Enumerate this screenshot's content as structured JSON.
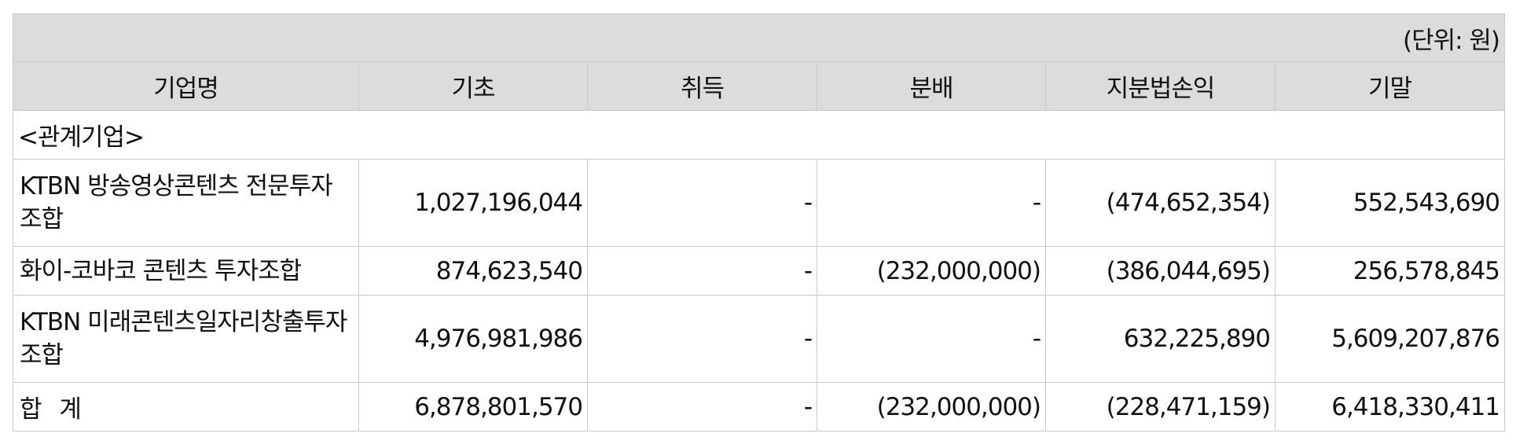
{
  "unit_label": "(단위: 원)",
  "columns": [
    "기업명",
    "기초",
    "취득",
    "분배",
    "지분법손익",
    "기말"
  ],
  "group_label": "<관계기업>",
  "rows": [
    {
      "name": "KTBN 방송영상콘텐츠 전문투자조합",
      "opening": "1,027,196,044",
      "acquisition": "-",
      "distribution": "-",
      "equity_method": "(474,652,354)",
      "closing": "552,543,690"
    },
    {
      "name": "화이-코바코 콘텐츠 투자조합",
      "opening": "874,623,540",
      "acquisition": "-",
      "distribution": "(232,000,000)",
      "equity_method": "(386,044,695)",
      "closing": "256,578,845"
    },
    {
      "name": "KTBN 미래콘텐츠일자리창출투자조합",
      "opening": "4,976,981,986",
      "acquisition": "-",
      "distribution": "-",
      "equity_method": "632,225,890",
      "closing": "5,609,207,876"
    }
  ],
  "total": {
    "name": "합 계",
    "opening": "6,878,801,570",
    "acquisition": "-",
    "distribution": "(232,000,000)",
    "equity_method": "(228,471,159)",
    "closing": "6,418,330,411"
  }
}
